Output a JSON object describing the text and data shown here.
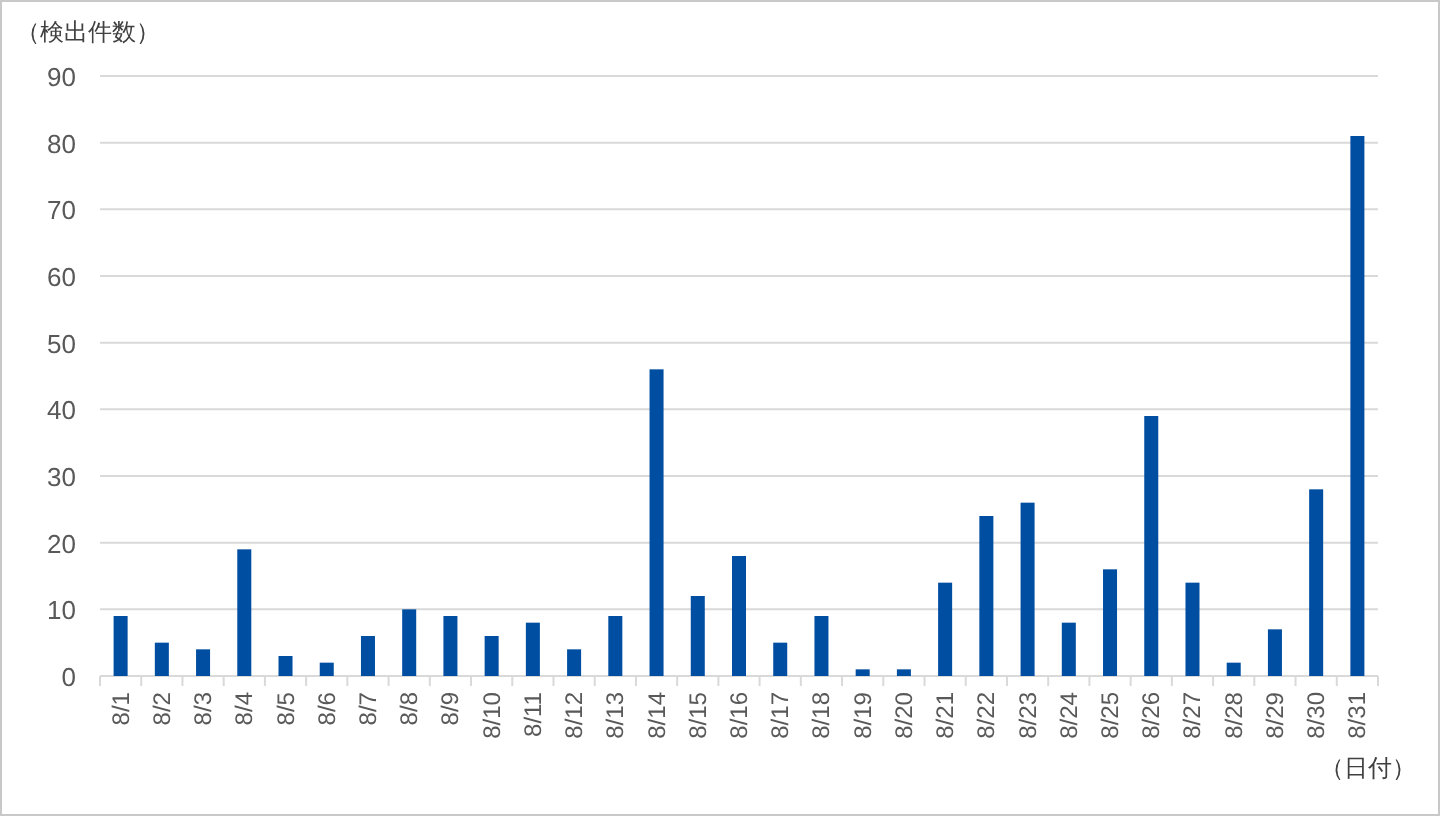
{
  "chart_data": {
    "type": "bar",
    "ylabel": "（検出件数）",
    "xlabel": "（日付）",
    "categories": [
      "8/1",
      "8/2",
      "8/3",
      "8/4",
      "8/5",
      "8/6",
      "8/7",
      "8/8",
      "8/9",
      "8/10",
      "8/11",
      "8/12",
      "8/13",
      "8/14",
      "8/15",
      "8/16",
      "8/17",
      "8/18",
      "8/19",
      "8/20",
      "8/21",
      "8/22",
      "8/23",
      "8/24",
      "8/25",
      "8/26",
      "8/27",
      "8/28",
      "8/29",
      "8/30",
      "8/31"
    ],
    "values": [
      9,
      5,
      4,
      19,
      3,
      2,
      6,
      10,
      9,
      6,
      8,
      4,
      9,
      46,
      12,
      18,
      5,
      9,
      1,
      1,
      14,
      24,
      26,
      8,
      16,
      39,
      14,
      2,
      7,
      28,
      81
    ],
    "color": "#004ea2",
    "ylim": [
      0,
      90
    ],
    "yticks": [
      0,
      10,
      20,
      30,
      40,
      50,
      60,
      70,
      80,
      90
    ],
    "grid": "y"
  }
}
